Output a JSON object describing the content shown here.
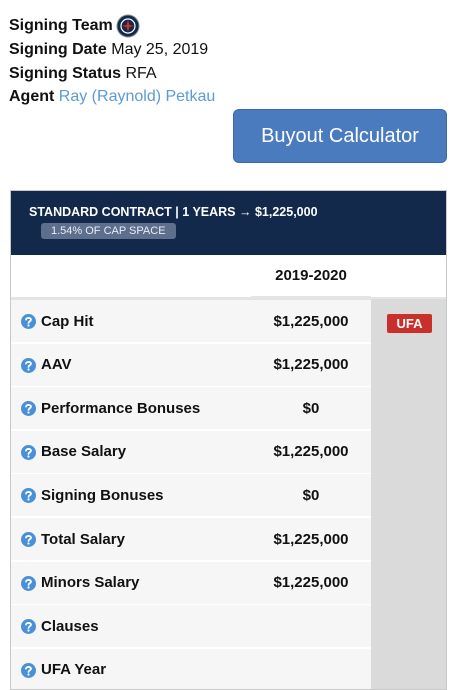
{
  "details": [
    {
      "label": "Signing Team"
    },
    {
      "label": "Signing Date",
      "value": "May 25, 2019"
    },
    {
      "label": "Signing Status",
      "value": "RFA"
    },
    {
      "label": "Agent",
      "value": "Ray (Raynold) Petkau"
    }
  ],
  "button": "Buyout Calculator",
  "contract": {
    "header": "STANDARD CONTRACT | 1 YEARS → $1,225,000",
    "cap_space": "1.54% OF CAP SPACE",
    "season": "2019-2020",
    "status": "UFA",
    "rows": [
      {
        "label": "Cap Hit",
        "value": "$1,225,000"
      },
      {
        "label": "AAV",
        "value": "$1,225,000"
      },
      {
        "label": "Performance Bonuses",
        "value": "$0"
      },
      {
        "label": "Base Salary",
        "value": "$1,225,000"
      },
      {
        "label": "Signing Bonuses",
        "value": "$0"
      },
      {
        "label": "Total Salary",
        "value": "$1,225,000"
      },
      {
        "label": "Minors Salary",
        "value": "$1,225,000"
      },
      {
        "label": "Clauses"
      },
      {
        "label": "UFA Year"
      }
    ]
  }
}
